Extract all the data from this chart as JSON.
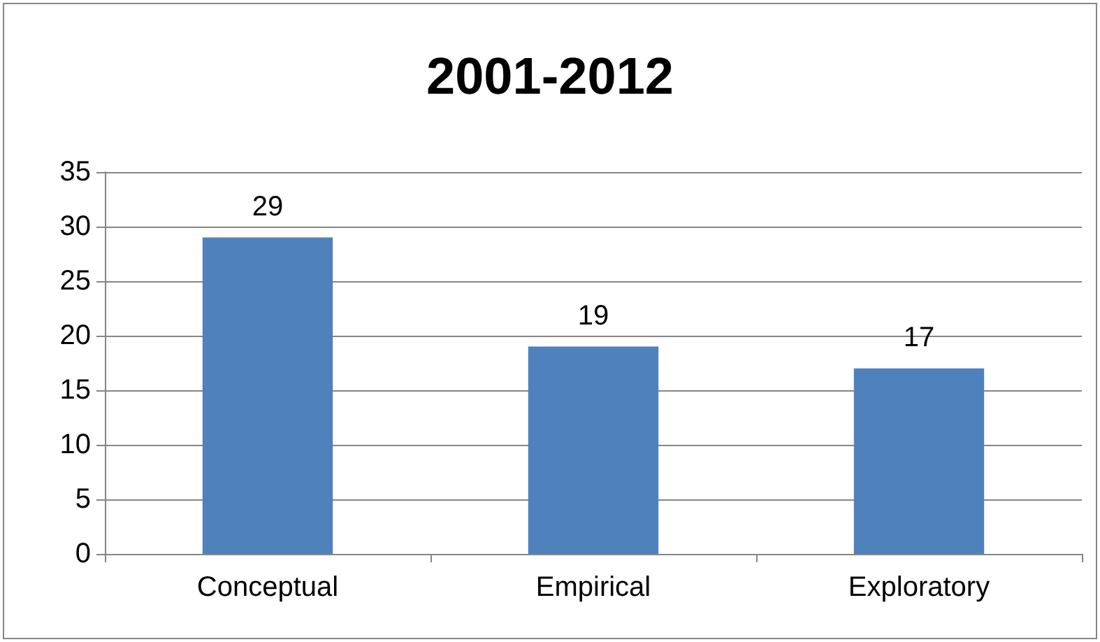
{
  "chart_data": {
    "type": "bar",
    "title": "2001-2012",
    "categories": [
      "Conceptual",
      "Empirical",
      "Exploratory"
    ],
    "values": [
      29,
      19,
      17
    ],
    "color": "#4f81bd",
    "ylim": [
      0,
      35
    ],
    "yticks": [
      0,
      5,
      10,
      15,
      20,
      25,
      30,
      35
    ],
    "grid": "y",
    "data_labels": true
  }
}
